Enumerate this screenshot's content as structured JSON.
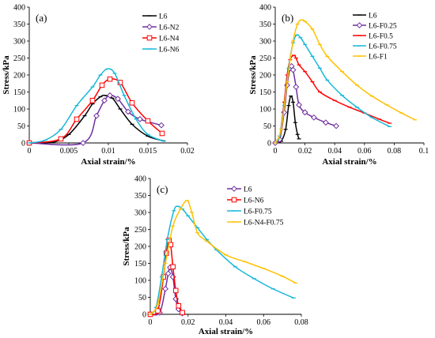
{
  "chart_data": [
    {
      "id": "a",
      "type": "line",
      "panel_label": "(a)",
      "xlabel": "Axial strain/%",
      "ylabel": "Stress/kPa",
      "xlim": [
        0,
        0.02
      ],
      "ylim": [
        0,
        400
      ],
      "xticks": [
        0,
        0.005,
        0.01,
        0.015,
        0.02
      ],
      "xtick_labels": [
        "0",
        "0.005",
        "0.01",
        "0.015",
        "0.02"
      ],
      "yticks": [
        0,
        50,
        100,
        150,
        200,
        250,
        300,
        350,
        400
      ],
      "ytick_labels": [
        "0",
        "50",
        "100",
        "150",
        "200",
        "250",
        "300",
        "350",
        "400"
      ],
      "legend_position": "top-right",
      "series": [
        {
          "name": "L6",
          "color": "#000000",
          "marker": "dash",
          "x": [
            0,
            0.003,
            0.005,
            0.007,
            0.008,
            0.009,
            0.0095,
            0.0105,
            0.0115,
            0.013,
            0.015,
            0.017
          ],
          "y": [
            0,
            2,
            25,
            80,
            115,
            136,
            140,
            132,
            100,
            55,
            20,
            6
          ]
        },
        {
          "name": "L6-N2",
          "color": "#7030a0",
          "marker": "diamond",
          "x": [
            0,
            0.0068,
            0.0085,
            0.0095,
            0.0102,
            0.0112,
            0.0125,
            0.014,
            0.0167
          ],
          "y": [
            0,
            0,
            80,
            125,
            140,
            130,
            92,
            70,
            52
          ]
        },
        {
          "name": "L6-N4",
          "color": "#ff0000",
          "marker": "square",
          "x": [
            0,
            0.004,
            0.006,
            0.008,
            0.0092,
            0.0102,
            0.0115,
            0.013,
            0.015,
            0.0168
          ],
          "y": [
            0,
            12,
            70,
            125,
            170,
            188,
            178,
            118,
            65,
            28
          ]
        },
        {
          "name": "L6-N6",
          "color": "#17b8d8",
          "marker": "dash",
          "x": [
            0,
            0.002,
            0.004,
            0.006,
            0.008,
            0.009,
            0.0099,
            0.0108,
            0.012,
            0.0135,
            0.015,
            0.017
          ],
          "y": [
            0,
            8,
            40,
            110,
            165,
            200,
            218,
            205,
            140,
            70,
            25,
            5
          ]
        }
      ]
    },
    {
      "id": "b",
      "type": "line",
      "panel_label": "(b)",
      "xlabel": "Axial strain/%",
      "ylabel": "Stress/kPa",
      "xlim": [
        0,
        0.1
      ],
      "ylim": [
        0,
        400
      ],
      "xticks": [
        0,
        0.02,
        0.04,
        0.06,
        0.08,
        0.1
      ],
      "xtick_labels": [
        "0",
        "0.02",
        "0.04",
        "0.06",
        "0.08",
        "0.1"
      ],
      "yticks": [
        0,
        50,
        100,
        150,
        200,
        250,
        300,
        350,
        400
      ],
      "ytick_labels": [
        "0",
        "50",
        "100",
        "150",
        "200",
        "250",
        "300",
        "350",
        "400"
      ],
      "legend_position": "top-right",
      "series": [
        {
          "name": "L6",
          "color": "#000000",
          "marker": "dash",
          "x": [
            0,
            0.004,
            0.007,
            0.009,
            0.0105,
            0.012,
            0.0135,
            0.015,
            0.016
          ],
          "y": [
            0,
            5,
            40,
            110,
            138,
            120,
            60,
            25,
            12
          ]
        },
        {
          "name": "L6-F0.25",
          "color": "#7030a0",
          "marker": "diamond",
          "x": [
            0,
            0.003,
            0.006,
            0.008,
            0.01,
            0.011,
            0.012,
            0.014,
            0.016,
            0.02,
            0.026,
            0.034,
            0.041
          ],
          "y": [
            0,
            10,
            90,
            170,
            220,
            226,
            215,
            165,
            112,
            90,
            75,
            60,
            50
          ]
        },
        {
          "name": "L6-F0.5",
          "color": "#ff0000",
          "marker": "dash",
          "x": [
            0,
            0.003,
            0.006,
            0.008,
            0.01,
            0.0125,
            0.014,
            0.016,
            0.02,
            0.025,
            0.03,
            0.04,
            0.05,
            0.06,
            0.07,
            0.077
          ],
          "y": [
            0,
            20,
            120,
            200,
            245,
            258,
            250,
            230,
            210,
            180,
            150,
            125,
            105,
            88,
            70,
            58
          ]
        },
        {
          "name": "L6-F0.75",
          "color": "#17b8d8",
          "marker": "dash",
          "x": [
            0,
            0.003,
            0.006,
            0.009,
            0.012,
            0.0145,
            0.017,
            0.02,
            0.025,
            0.03,
            0.035,
            0.045,
            0.055,
            0.065,
            0.077
          ],
          "y": [
            0,
            20,
            110,
            220,
            295,
            318,
            310,
            290,
            255,
            220,
            185,
            140,
            105,
            75,
            48
          ]
        },
        {
          "name": "L6-F1",
          "color": "#ffc000",
          "marker": "dash",
          "x": [
            0,
            0.004,
            0.008,
            0.012,
            0.015,
            0.0175,
            0.02,
            0.025,
            0.03,
            0.035,
            0.045,
            0.055,
            0.065,
            0.075,
            0.085,
            0.094
          ],
          "y": [
            0,
            40,
            180,
            300,
            350,
            362,
            358,
            335,
            290,
            255,
            210,
            170,
            138,
            112,
            88,
            68
          ]
        }
      ]
    },
    {
      "id": "c",
      "type": "line",
      "panel_label": "(c)",
      "xlabel": "Axial strain/%",
      "ylabel": "Stress/kPa",
      "xlim": [
        0,
        0.08
      ],
      "ylim": [
        0,
        400
      ],
      "xticks": [
        0,
        0.02,
        0.04,
        0.06,
        0.08
      ],
      "xtick_labels": [
        "0",
        "0.02",
        "0.04",
        "0.06",
        "0.08"
      ],
      "yticks": [
        0,
        50,
        100,
        150,
        200,
        250,
        300,
        350,
        400
      ],
      "ytick_labels": [
        "0",
        "50",
        "100",
        "150",
        "200",
        "250",
        "300",
        "350",
        "400"
      ],
      "legend_position": "top-right",
      "series": [
        {
          "name": "L6",
          "color": "#7030a0",
          "marker": "diamond",
          "x": [
            0,
            0.005,
            0.008,
            0.0095,
            0.0105,
            0.012,
            0.0135,
            0.015,
            0.017
          ],
          "y": [
            0,
            5,
            75,
            120,
            138,
            110,
            45,
            15,
            3
          ]
        },
        {
          "name": "L6-N6",
          "color": "#ff0000",
          "marker": "square",
          "x": [
            0,
            0.004,
            0.007,
            0.0085,
            0.0099,
            0.0108,
            0.012,
            0.0135,
            0.015,
            0.017
          ],
          "y": [
            0,
            10,
            110,
            180,
            218,
            205,
            140,
            70,
            25,
            5
          ]
        },
        {
          "name": "L6-F0.75",
          "color": "#17b8d8",
          "marker": "dash",
          "x": [
            0,
            0.003,
            0.006,
            0.009,
            0.0125,
            0.0145,
            0.017,
            0.02,
            0.025,
            0.03,
            0.035,
            0.045,
            0.055,
            0.065,
            0.076
          ],
          "y": [
            0,
            20,
            110,
            220,
            305,
            318,
            310,
            290,
            255,
            220,
            190,
            140,
            105,
            75,
            48
          ]
        },
        {
          "name": "L6-N4-F0.75",
          "color": "#ffc000",
          "marker": "dash",
          "x": [
            0,
            0.004,
            0.008,
            0.012,
            0.016,
            0.0195,
            0.022,
            0.025,
            0.03,
            0.04,
            0.05,
            0.06,
            0.07,
            0.077
          ],
          "y": [
            0,
            30,
            150,
            260,
            310,
            335,
            300,
            240,
            215,
            175,
            155,
            135,
            112,
            92
          ]
        }
      ]
    }
  ]
}
